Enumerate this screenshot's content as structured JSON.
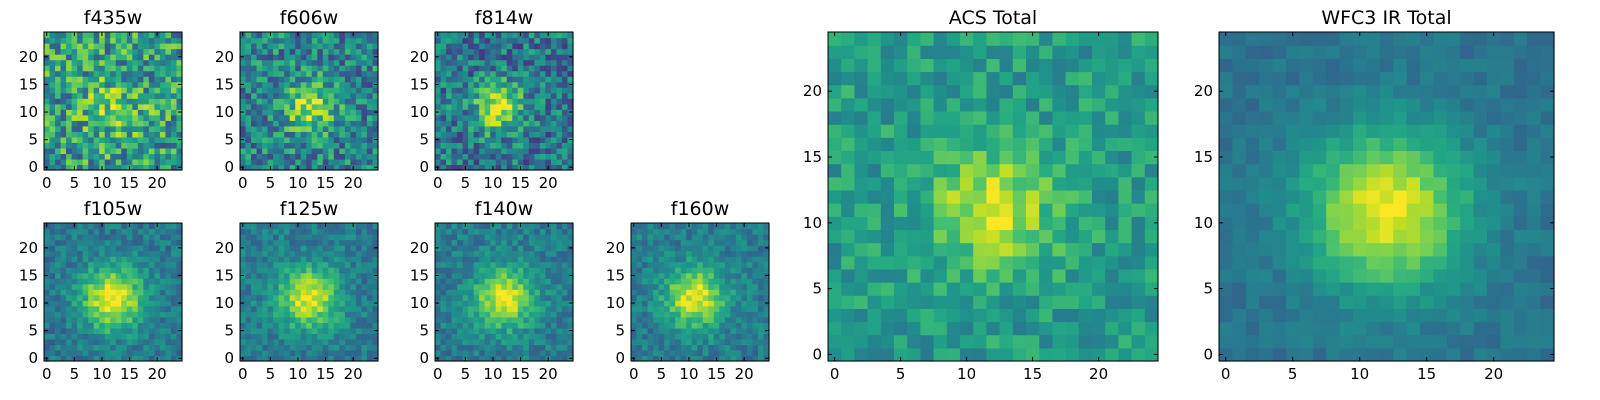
{
  "figure": {
    "description_colormap": "viridis",
    "colors": {
      "low": "#440154",
      "mid": "#21918c",
      "high": "#fde725"
    }
  },
  "chart_data": [
    {
      "type": "heatmap",
      "title": "f435w",
      "xlabel": "",
      "ylabel": "",
      "grid_size": 25,
      "xlim": [
        0,
        24
      ],
      "ylim": [
        0,
        24
      ],
      "xticks": [
        0,
        5,
        10,
        15,
        20
      ],
      "yticks": [
        0,
        5,
        10,
        15,
        20
      ],
      "grid": false,
      "colormap": "viridis",
      "center": [
        12,
        11
      ],
      "peak": 0.2,
      "sigma": 4.0,
      "base": 0.55,
      "noise": 0.3,
      "seed": 11
    },
    {
      "type": "heatmap",
      "title": "f606w",
      "xlabel": "",
      "ylabel": "",
      "grid_size": 25,
      "xlim": [
        0,
        24
      ],
      "ylim": [
        0,
        24
      ],
      "xticks": [
        0,
        5,
        10,
        15,
        20
      ],
      "yticks": [
        0,
        5,
        10,
        15,
        20
      ],
      "grid": false,
      "colormap": "viridis",
      "center": [
        12,
        11
      ],
      "peak": 0.45,
      "sigma": 3.2,
      "base": 0.45,
      "noise": 0.25,
      "seed": 23
    },
    {
      "type": "heatmap",
      "title": "f814w",
      "xlabel": "",
      "ylabel": "",
      "grid_size": 25,
      "xlim": [
        0,
        24
      ],
      "ylim": [
        0,
        24
      ],
      "xticks": [
        0,
        5,
        10,
        15,
        20
      ],
      "yticks": [
        0,
        5,
        10,
        15,
        20
      ],
      "grid": false,
      "colormap": "viridis",
      "center": [
        11,
        11
      ],
      "peak": 0.55,
      "sigma": 3.0,
      "base": 0.4,
      "noise": 0.24,
      "seed": 37
    },
    {
      "type": "heatmap",
      "title": "f105w",
      "xlabel": "",
      "ylabel": "",
      "grid_size": 25,
      "xlim": [
        0,
        24
      ],
      "ylim": [
        0,
        24
      ],
      "xticks": [
        0,
        5,
        10,
        15,
        20
      ],
      "yticks": [
        0,
        5,
        10,
        15,
        20
      ],
      "grid": false,
      "colormap": "viridis",
      "center": [
        12,
        11
      ],
      "peak": 0.6,
      "sigma": 4.0,
      "base": 0.4,
      "noise": 0.12,
      "seed": 41
    },
    {
      "type": "heatmap",
      "title": "f125w",
      "xlabel": "",
      "ylabel": "",
      "grid_size": 25,
      "xlim": [
        0,
        24
      ],
      "ylim": [
        0,
        24
      ],
      "xticks": [
        0,
        5,
        10,
        15,
        20
      ],
      "yticks": [
        0,
        5,
        10,
        15,
        20
      ],
      "grid": false,
      "colormap": "viridis",
      "center": [
        12,
        11
      ],
      "peak": 0.55,
      "sigma": 3.8,
      "base": 0.42,
      "noise": 0.12,
      "seed": 53
    },
    {
      "type": "heatmap",
      "title": "f140w",
      "xlabel": "",
      "ylabel": "",
      "grid_size": 25,
      "xlim": [
        0,
        24
      ],
      "ylim": [
        0,
        24
      ],
      "xticks": [
        0,
        5,
        10,
        15,
        20
      ],
      "yticks": [
        0,
        5,
        10,
        15,
        20
      ],
      "grid": false,
      "colormap": "viridis",
      "center": [
        12,
        11
      ],
      "peak": 0.55,
      "sigma": 3.8,
      "base": 0.42,
      "noise": 0.12,
      "seed": 67
    },
    {
      "type": "heatmap",
      "title": "f160w",
      "xlabel": "",
      "ylabel": "",
      "grid_size": 25,
      "xlim": [
        0,
        24
      ],
      "ylim": [
        0,
        24
      ],
      "xticks": [
        0,
        5,
        10,
        15,
        20
      ],
      "yticks": [
        0,
        5,
        10,
        15,
        20
      ],
      "grid": false,
      "colormap": "viridis",
      "center": [
        11,
        11
      ],
      "peak": 0.55,
      "sigma": 3.8,
      "base": 0.42,
      "noise": 0.12,
      "seed": 79
    },
    {
      "type": "heatmap",
      "title": "ACS Total",
      "xlabel": "",
      "ylabel": "",
      "grid_size": 25,
      "xlim": [
        0,
        24
      ],
      "ylim": [
        0,
        24
      ],
      "xticks": [
        0,
        5,
        10,
        15,
        20
      ],
      "yticks": [
        0,
        5,
        10,
        15,
        20
      ],
      "grid": false,
      "colormap": "viridis",
      "center": [
        12,
        11
      ],
      "peak": 0.4,
      "sigma": 3.2,
      "base": 0.55,
      "noise": 0.14,
      "seed": 91
    },
    {
      "type": "heatmap",
      "title": "WFC3 IR Total",
      "xlabel": "",
      "ylabel": "",
      "grid_size": 25,
      "xlim": [
        0,
        24
      ],
      "ylim": [
        0,
        24
      ],
      "xticks": [
        0,
        5,
        10,
        15,
        20
      ],
      "yticks": [
        0,
        5,
        10,
        15,
        20
      ],
      "grid": false,
      "colormap": "viridis",
      "center": [
        12,
        11
      ],
      "peak": 0.6,
      "sigma": 4.2,
      "base": 0.38,
      "noise": 0.06,
      "seed": 103
    }
  ]
}
